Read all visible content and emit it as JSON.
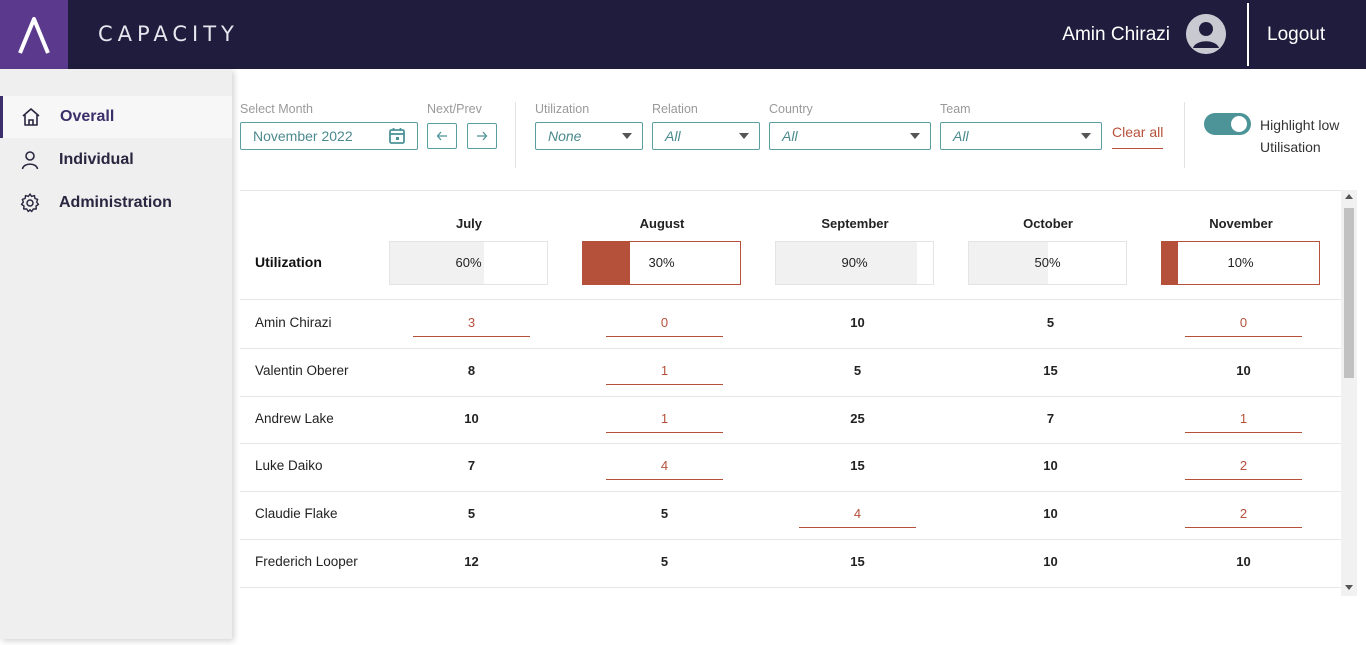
{
  "header": {
    "brand": "CAPACITY",
    "user_name": "Amin Chirazi",
    "logout_label": "Logout"
  },
  "sidebar": {
    "items": [
      {
        "label": "Overall",
        "icon": "home-icon",
        "active": true
      },
      {
        "label": "Individual",
        "icon": "user-icon",
        "active": false
      },
      {
        "label": "Administration",
        "icon": "gear-icon",
        "active": false
      }
    ]
  },
  "filters": {
    "month_label": "Select Month",
    "month_value": "November 2022",
    "nextprev_label": "Next/Prev",
    "utilization_label": "Utilization",
    "utilization_value": "None",
    "relation_label": "Relation",
    "relation_value": "All",
    "country_label": "Country",
    "country_value": "All",
    "team_label": "Team",
    "team_value": "All",
    "clear_all": "Clear all",
    "highlight_label": "Highlight low Utilisation",
    "highlight_on": true
  },
  "colors": {
    "header_bg": "#1f1c3d",
    "logo_bg": "#5b3a8e",
    "accent_teal": "#4d9498",
    "low_red": "#b5513a"
  },
  "table": {
    "utilization_label": "Utilization",
    "months": [
      {
        "name": "July",
        "util": "60%",
        "fill": 0.6,
        "low": false
      },
      {
        "name": "August",
        "util": "30%",
        "fill": 0.3,
        "low": true
      },
      {
        "name": "September",
        "util": "90%",
        "fill": 0.9,
        "low": false
      },
      {
        "name": "October",
        "util": "50%",
        "fill": 0.5,
        "low": false
      },
      {
        "name": "November",
        "util": "10%",
        "fill": 0.1,
        "low": true
      }
    ],
    "rows": [
      {
        "name": "Amin Chirazi",
        "values": [
          "3",
          "0",
          "10",
          "5",
          "0"
        ],
        "low": [
          true,
          true,
          false,
          false,
          true
        ]
      },
      {
        "name": "Valentin Oberer",
        "values": [
          "8",
          "1",
          "5",
          "15",
          "10"
        ],
        "low": [
          false,
          true,
          false,
          false,
          false
        ]
      },
      {
        "name": "Andrew Lake",
        "values": [
          "10",
          "1",
          "25",
          "7",
          "1"
        ],
        "low": [
          false,
          true,
          false,
          false,
          true
        ]
      },
      {
        "name": "Luke Daiko",
        "values": [
          "7",
          "4",
          "15",
          "10",
          "2"
        ],
        "low": [
          false,
          true,
          false,
          false,
          true
        ]
      },
      {
        "name": "Claudie Flake",
        "values": [
          "5",
          "5",
          "4",
          "10",
          "2"
        ],
        "low": [
          false,
          false,
          true,
          false,
          true
        ]
      },
      {
        "name": "Frederich Looper",
        "values": [
          "12",
          "5",
          "15",
          "10",
          "10"
        ],
        "low": [
          false,
          false,
          false,
          false,
          false
        ]
      }
    ]
  }
}
